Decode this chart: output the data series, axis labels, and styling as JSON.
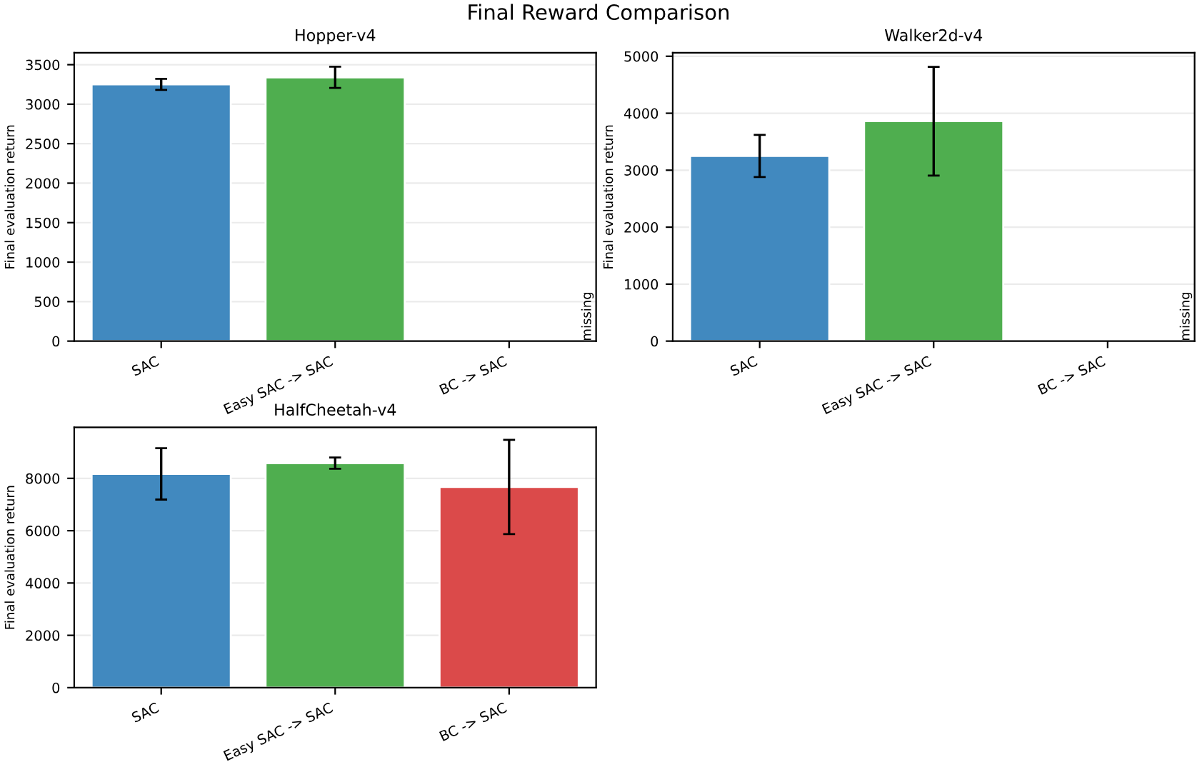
{
  "chart_data": [
    {
      "type": "other",
      "title": "Final Reward Comparison"
    },
    {
      "type": "bar",
      "title": "Hopper-v4",
      "ylabel": "Final evaluation return",
      "categories": [
        "SAC",
        "Easy SAC -> SAC",
        "BC -> SAC"
      ],
      "values": [
        3250,
        3340,
        null
      ],
      "errors": [
        70,
        135,
        null
      ],
      "colors": [
        "#4189bf",
        "#4fae4f",
        "#db4a4a"
      ],
      "ylim": [
        0,
        3650
      ],
      "yticks": [
        0,
        500,
        1000,
        1500,
        2000,
        2500,
        3000,
        3500
      ],
      "grid": "y",
      "annotations": [
        "missing"
      ]
    },
    {
      "type": "bar",
      "title": "Walker2d-v4",
      "ylabel": "Final evaluation return",
      "categories": [
        "SAC",
        "Easy SAC -> SAC",
        "BC -> SAC"
      ],
      "values": [
        3250,
        3860,
        null
      ],
      "errors": [
        370,
        955,
        null
      ],
      "colors": [
        "#4189bf",
        "#4fae4f",
        "#db4a4a"
      ],
      "ylim": [
        0,
        5060
      ],
      "yticks": [
        0,
        1000,
        2000,
        3000,
        4000,
        5000
      ],
      "grid": "y",
      "annotations": [
        "missing"
      ]
    },
    {
      "type": "bar",
      "title": "HalfCheetah-v4",
      "ylabel": "Final evaluation return",
      "categories": [
        "SAC",
        "Easy SAC -> SAC",
        "BC -> SAC"
      ],
      "values": [
        8170,
        8580,
        7670
      ],
      "errors": [
        980,
        215,
        1800
      ],
      "colors": [
        "#4189bf",
        "#4fae4f",
        "#db4a4a"
      ],
      "ylim": [
        0,
        9950
      ],
      "yticks": [
        0,
        2000,
        4000,
        6000,
        8000
      ],
      "grid": "y"
    }
  ]
}
